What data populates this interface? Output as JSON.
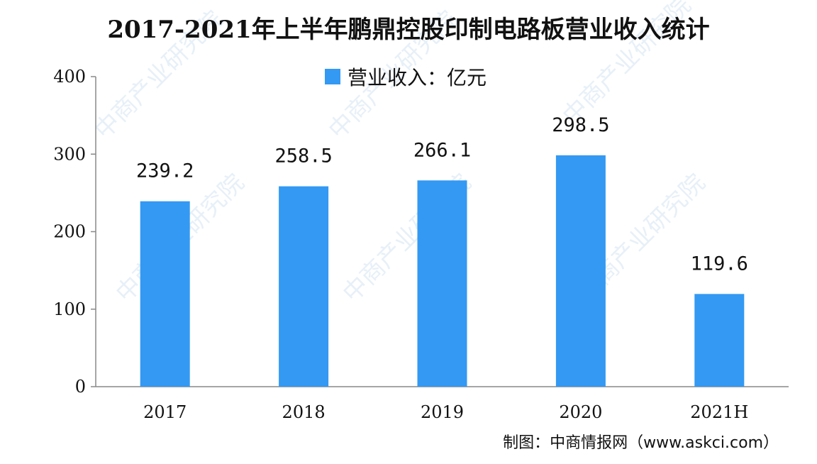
{
  "chart_data": {
    "type": "bar",
    "title": "2017-2021年上半年鹏鼎控股印制电路板营业收入统计",
    "categories": [
      "2017",
      "2018",
      "2019",
      "2020",
      "2021H"
    ],
    "series": [
      {
        "name": "营业收入：亿元",
        "values": [
          239.2,
          258.5,
          266.1,
          298.5,
          119.6
        ],
        "value_labels": [
          "239.2",
          "258.5",
          "266.1",
          "298.5",
          "119.6"
        ]
      }
    ],
    "ylim": [
      0,
      400
    ],
    "yticks": [
      "0",
      "100",
      "200",
      "300",
      "400"
    ],
    "xlabel": "",
    "ylabel": "",
    "grid": false,
    "legend_position": "top-center",
    "bar_color": "#3399f3"
  },
  "source_note": "制图：中商情报网（www.askci.com）",
  "watermark_text": "中商产业研究院"
}
